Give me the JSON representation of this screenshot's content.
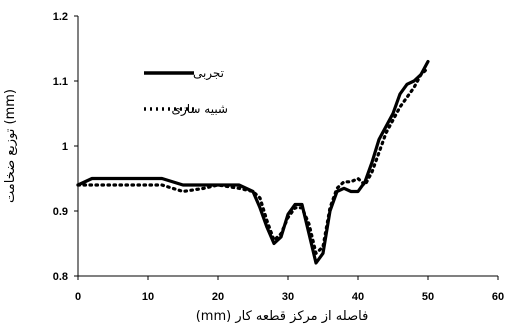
{
  "chart_data": {
    "type": "line",
    "xlabel": "فاصله از مرکز قطعه کار (mm)",
    "ylabel": "توزیع ضخامت (mm)",
    "xlim": [
      0,
      60
    ],
    "ylim": [
      0.8,
      1.2
    ],
    "x_ticks": [
      "0",
      "10",
      "20",
      "30",
      "40",
      "50",
      "60"
    ],
    "y_ticks": [
      "0.8",
      "0.9",
      "1",
      "1.1",
      "1.2"
    ],
    "legend_position": "top-left",
    "grid": false,
    "series": [
      {
        "name": "تجربی",
        "style": "solid",
        "color": "#000000",
        "x": [
          0,
          2,
          5,
          10,
          12,
          15,
          20,
          23,
          25,
          26,
          27,
          28,
          29,
          30,
          31,
          32,
          33,
          34,
          35,
          36,
          37,
          38,
          39,
          40,
          41,
          42,
          43,
          44,
          45,
          46,
          47,
          48,
          49,
          50
        ],
        "y": [
          0.94,
          0.95,
          0.95,
          0.95,
          0.95,
          0.94,
          0.94,
          0.94,
          0.93,
          0.905,
          0.875,
          0.85,
          0.86,
          0.895,
          0.91,
          0.91,
          0.865,
          0.82,
          0.835,
          0.9,
          0.93,
          0.935,
          0.93,
          0.93,
          0.945,
          0.975,
          1.01,
          1.03,
          1.05,
          1.08,
          1.095,
          1.1,
          1.11,
          1.13
        ]
      },
      {
        "name": "شبیه سازی",
        "style": "dotted",
        "color": "#000000",
        "x": [
          0,
          5,
          10,
          12,
          15,
          18,
          20,
          23,
          25,
          26,
          27,
          28,
          29,
          30,
          31,
          32,
          33,
          34,
          35,
          36,
          37,
          38,
          39,
          40,
          41,
          42,
          43,
          44,
          45,
          46,
          47,
          48,
          49,
          50
        ],
        "y": [
          0.94,
          0.94,
          0.94,
          0.94,
          0.93,
          0.935,
          0.94,
          0.935,
          0.93,
          0.92,
          0.885,
          0.855,
          0.865,
          0.89,
          0.905,
          0.905,
          0.88,
          0.835,
          0.845,
          0.905,
          0.935,
          0.945,
          0.945,
          0.95,
          0.94,
          0.96,
          0.99,
          1.02,
          1.04,
          1.06,
          1.075,
          1.09,
          1.11,
          1.12
        ]
      }
    ]
  }
}
